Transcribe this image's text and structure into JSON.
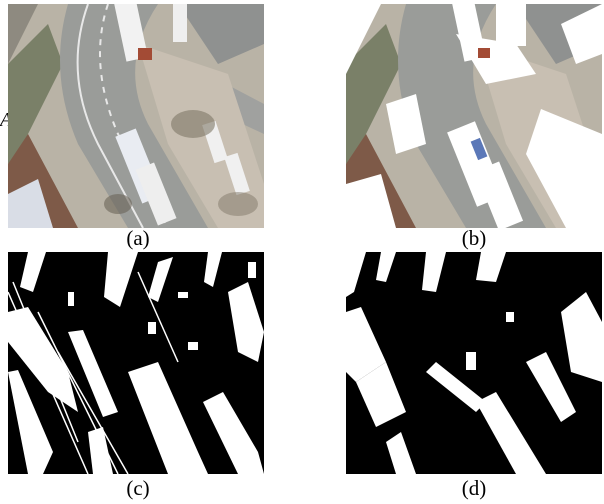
{
  "figure": {
    "side_label": "A",
    "panels": [
      {
        "id": "a",
        "caption": "(a)",
        "kind": "aerial photo of a curved road with buses and sidewalks"
      },
      {
        "id": "b",
        "caption": "(b)",
        "kind": "aerial photo with detected regions painted white"
      },
      {
        "id": "c",
        "caption": "(c)",
        "kind": "binary mask, noisy"
      },
      {
        "id": "d",
        "caption": "(d)",
        "kind": "binary mask, smoothed"
      }
    ]
  }
}
